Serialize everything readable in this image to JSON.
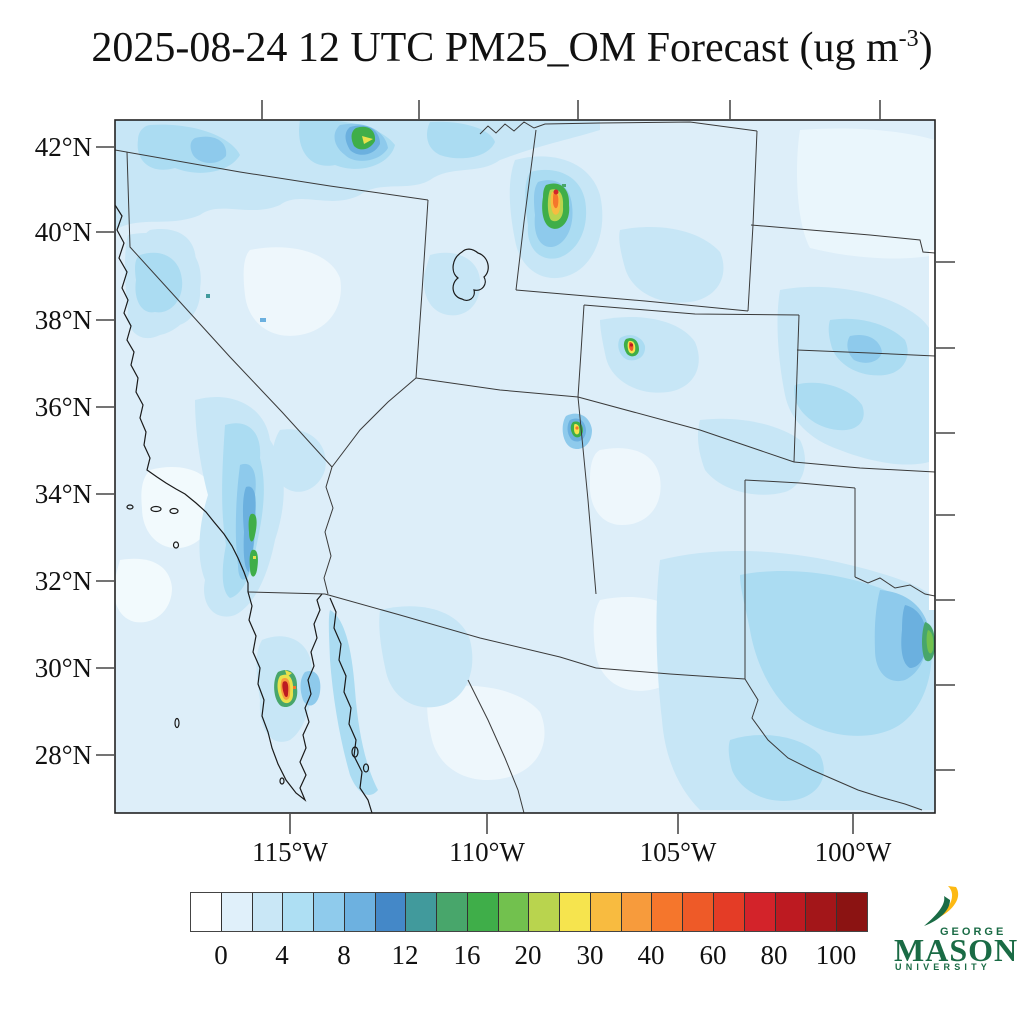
{
  "title": {
    "prefix": "2025-08-24 12 UTC PM25_OM Forecast (ug m",
    "superscript": "-3",
    "suffix": ")"
  },
  "map": {
    "lat_labels": [
      "42°N",
      "40°N",
      "38°N",
      "36°N",
      "34°N",
      "32°N",
      "30°N",
      "28°N"
    ],
    "lon_labels": [
      "115°W",
      "110°W",
      "105°W",
      "100°W"
    ]
  },
  "colorbar": {
    "tick_labels": [
      "0",
      "4",
      "8",
      "12",
      "16",
      "20",
      "30",
      "40",
      "60",
      "80",
      "100"
    ],
    "colors": [
      "#ffffff",
      "#e0f0fa",
      "#c9e7f6",
      "#aedff3",
      "#8fcbec",
      "#6db1e0",
      "#4488c8",
      "#419a9c",
      "#48a66b",
      "#3fae49",
      "#72c14e",
      "#b9d44e",
      "#f6e44e",
      "#f8bb40",
      "#f79b3c",
      "#f5762c",
      "#ee5a28",
      "#e43c26",
      "#d3232a",
      "#bd1a21",
      "#a31619",
      "#8b1312"
    ]
  },
  "logo": {
    "line1": "GEORGE",
    "line2": "MASON",
    "line3": "UNIVERSITY",
    "green": "#1a6b45",
    "gold": "#fdb913"
  },
  "chart_data": {
    "type": "heatmap",
    "subtype": "filled-contour geographic forecast map",
    "title": "2025-08-24 12 UTC PM25_OM Forecast (ug m-3)",
    "units": "ug m-3",
    "lat_ticks": [
      "42°N",
      "40°N",
      "38°N",
      "36°N",
      "34°N",
      "32°N",
      "30°N",
      "28°N"
    ],
    "lon_ticks": [
      "115°W",
      "110°W",
      "105°W",
      "100°W"
    ],
    "colorbar_labeled_levels": [
      0,
      4,
      8,
      12,
      16,
      20,
      30,
      40,
      60,
      80,
      100
    ],
    "colorbar_level_bounds": [
      0,
      2,
      4,
      6,
      8,
      10,
      12,
      14,
      16,
      18,
      20,
      25,
      30,
      35,
      40,
      50,
      60,
      70,
      80,
      90,
      100
    ],
    "colorbar_colors": [
      "#ffffff",
      "#e0f0fa",
      "#c9e7f6",
      "#aedff3",
      "#8fcbec",
      "#6db1e0",
      "#4488c8",
      "#419a9c",
      "#48a66b",
      "#3fae49",
      "#72c14e",
      "#b9d44e",
      "#f6e44e",
      "#f8bb40",
      "#f79b3c",
      "#f5762c",
      "#ee5a28",
      "#e43c26",
      "#d3232a",
      "#bd1a21",
      "#a31619",
      "#8b1312"
    ],
    "background_field": "mostly 0-8 ug m-3 light blues across the domain; enhanced 4-10 band along 42N (Oregon/Idaho), southern California valleys, eastern Colorado/Kansas and central-east Texas",
    "hotspots": [
      {
        "name": "idaho-border-plume",
        "approx_lat": 42.2,
        "approx_lon": -114.5,
        "peak_level": "25-30"
      },
      {
        "name": "utah-wasatch-plume",
        "approx_lat": 41.0,
        "approx_lon": -111.8,
        "peak_level": ">70"
      },
      {
        "name": "colorado-plume",
        "approx_lat": 37.4,
        "approx_lon": -106.3,
        "peak_level": ">70"
      },
      {
        "name": "new-mexico-plume",
        "approx_lat": 35.5,
        "approx_lon": -108.5,
        "peak_level": "35-40"
      },
      {
        "name": "baja-california-plume",
        "approx_lat": 29.6,
        "approx_lon": -114.9,
        "peak_level": ">80"
      },
      {
        "name": "east-texas-edge-plume",
        "approx_lat": 30.5,
        "approx_lon": -97.5,
        "peak_level": "14-18"
      }
    ]
  }
}
